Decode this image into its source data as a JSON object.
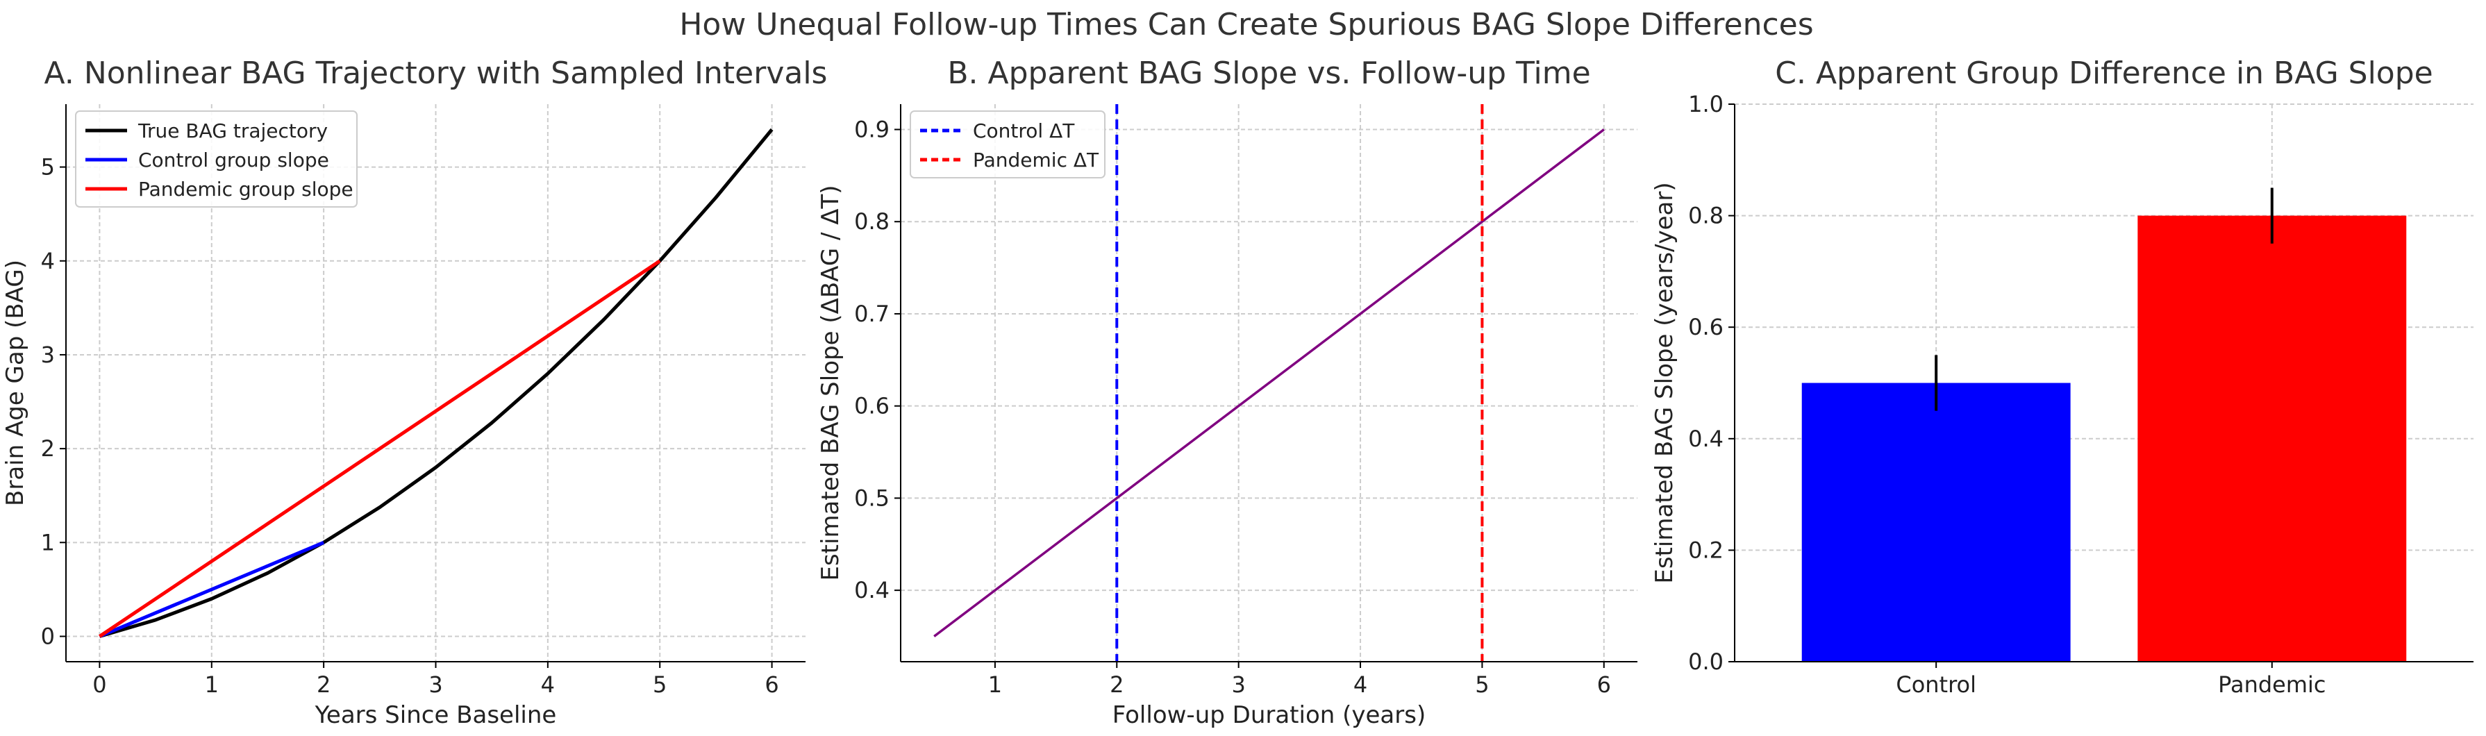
{
  "figure": {
    "suptitle": "How Unequal Follow-up Times Can Create Spurious BAG Slope Differences"
  },
  "chart_data": [
    {
      "id": "A",
      "type": "line",
      "title": "A. Nonlinear BAG Trajectory with Sampled Intervals",
      "xlabel": "Years Since Baseline",
      "ylabel": "Brain Age Gap (BAG)",
      "xlim": [
        -0.3,
        6.3
      ],
      "ylim": [
        -0.27,
        5.67
      ],
      "xticks": [
        0,
        1,
        2,
        3,
        4,
        5,
        6
      ],
      "yticks": [
        0,
        1,
        2,
        3,
        4,
        5
      ],
      "grid": true,
      "legend_position": "upper-left",
      "series": [
        {
          "name": "True BAG trajectory",
          "color": "#000000",
          "x": [
            0,
            0.5,
            1,
            1.5,
            2,
            2.5,
            3,
            3.5,
            4,
            4.5,
            5,
            5.5,
            6
          ],
          "y": [
            0,
            0.175,
            0.4,
            0.675,
            1.0,
            1.375,
            1.8,
            2.275,
            2.8,
            3.375,
            4.0,
            4.675,
            5.4
          ]
        },
        {
          "name": "Control group slope",
          "color": "#0000ff",
          "x": [
            0,
            2
          ],
          "y": [
            0,
            1.0
          ]
        },
        {
          "name": "Pandemic group slope",
          "color": "#ff0000",
          "x": [
            0,
            5
          ],
          "y": [
            0,
            4.0
          ]
        }
      ]
    },
    {
      "id": "B",
      "type": "line",
      "title": "B. Apparent BAG Slope vs. Follow-up Time",
      "xlabel": "Follow-up Duration (years)",
      "ylabel": "Estimated BAG Slope (ΔBAG / ΔT)",
      "xlim": [
        0.225,
        6.275
      ],
      "ylim": [
        0.3225,
        0.9275
      ],
      "xticks": [
        1,
        2,
        3,
        4,
        5,
        6
      ],
      "yticks": [
        0.4,
        0.5,
        0.6,
        0.7,
        0.8,
        0.9
      ],
      "grid": true,
      "legend_position": "upper-left",
      "series": [
        {
          "color": "#800080",
          "x": [
            0.5,
            6
          ],
          "y": [
            0.35,
            0.9
          ]
        }
      ],
      "vlines": [
        {
          "name": "Control ΔT",
          "x": 2,
          "color": "#0000ff",
          "style": "dashed"
        },
        {
          "name": "Pandemic ΔT",
          "x": 5,
          "color": "#ff0000",
          "style": "dashed"
        }
      ]
    },
    {
      "id": "C",
      "type": "bar",
      "title": "C. Apparent Group Difference in BAG Slope",
      "xlabel": "",
      "ylabel": "Estimated BAG Slope (years/year)",
      "ylim": [
        0,
        1.0
      ],
      "yticks": [
        0.0,
        0.2,
        0.4,
        0.6,
        0.8,
        1.0
      ],
      "grid": true,
      "categories": [
        "Control",
        "Pandemic"
      ],
      "values": [
        0.5,
        0.8
      ],
      "errors": [
        0.05,
        0.05
      ],
      "colors": [
        "#0000ff",
        "#ff0000"
      ]
    }
  ]
}
